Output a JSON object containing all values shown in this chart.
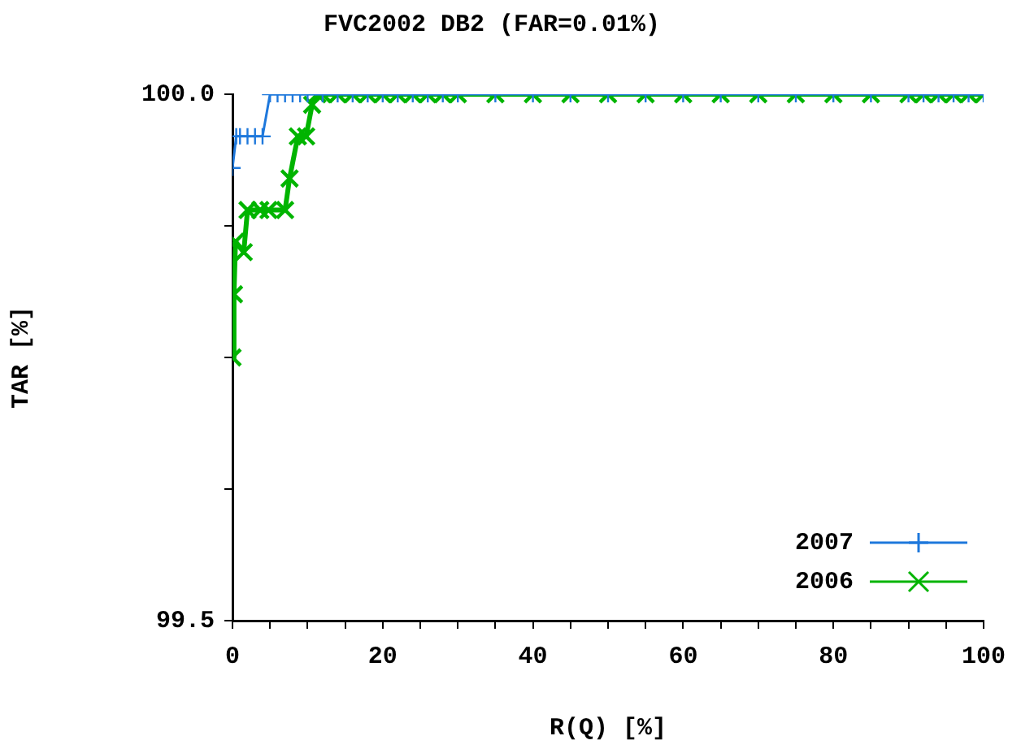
{
  "chart_data": {
    "type": "line",
    "title": "FVC2002 DB2 (FAR=0.01%)",
    "xlabel": "R(Q) [%]",
    "ylabel": "TAR [%]",
    "xlim": [
      0,
      100
    ],
    "ylim": [
      99.5,
      100
    ],
    "xticks": [
      0,
      {
        "value": 5,
        "label": null
      },
      {
        "value": 10,
        "label": null
      },
      {
        "value": 15,
        "label": null
      },
      20,
      {
        "value": 25,
        "label": null
      },
      {
        "value": 30,
        "label": null
      },
      {
        "value": 35,
        "label": null
      },
      40,
      {
        "value": 45,
        "label": null
      },
      {
        "value": 50,
        "label": null
      },
      {
        "value": 55,
        "label": null
      },
      60,
      {
        "value": 65,
        "label": null
      },
      {
        "value": 70,
        "label": null
      },
      {
        "value": 75,
        "label": null
      },
      80,
      {
        "value": 85,
        "label": null
      },
      {
        "value": 90,
        "label": null
      },
      {
        "value": 95,
        "label": null
      },
      100
    ],
    "yticks": [
      99.5,
      {
        "value": 99.625,
        "label": null
      },
      {
        "value": 99.75,
        "label": null
      },
      {
        "value": 99.875,
        "label": null
      },
      {
        "value": 100,
        "label": "100.0"
      }
    ],
    "grid": false,
    "legend": "bottom right",
    "line_style": "solid",
    "series": [
      {
        "name": "2007",
        "color": "#1e78dc",
        "marker": "cross",
        "x": [
          0,
          0.5,
          1,
          2,
          3,
          4,
          5,
          6,
          7,
          8,
          9,
          10,
          12,
          14,
          16,
          18,
          20,
          22,
          24,
          26,
          28,
          30,
          35,
          40,
          45,
          50,
          55,
          60,
          65,
          70,
          75,
          80,
          85,
          90,
          92,
          94,
          96,
          98,
          100
        ],
        "values": [
          99.93,
          99.96,
          99.96,
          99.96,
          99.96,
          99.96,
          100,
          100,
          100,
          100,
          100,
          100,
          100,
          100,
          100,
          100,
          100,
          100,
          100,
          100,
          100,
          100,
          100,
          100,
          100,
          100,
          100,
          100,
          100,
          100,
          100,
          100,
          100,
          100,
          100,
          100,
          100,
          100,
          100
        ]
      },
      {
        "name": "2006",
        "color": "#00b400",
        "marker": "x",
        "x": [
          0,
          0.2,
          0.4,
          1.5,
          2,
          3.7,
          4.8,
          7,
          7.6,
          8.7,
          9.8,
          10.6,
          11.3,
          12,
          14,
          16,
          18,
          20,
          22,
          24,
          26,
          28,
          30,
          35,
          40,
          45,
          50,
          55,
          60,
          65,
          70,
          75,
          80,
          85,
          90,
          92,
          94,
          96,
          98,
          100
        ],
        "values": [
          99.75,
          99.81,
          99.86,
          99.85,
          99.89,
          99.89,
          99.89,
          99.89,
          99.92,
          99.96,
          99.96,
          99.99,
          100,
          100,
          100,
          100,
          100,
          100,
          100,
          100,
          100,
          100,
          100,
          100,
          100,
          100,
          100,
          100,
          100,
          100,
          100,
          100,
          100,
          100,
          100,
          100,
          100,
          100,
          100,
          100
        ]
      }
    ]
  }
}
